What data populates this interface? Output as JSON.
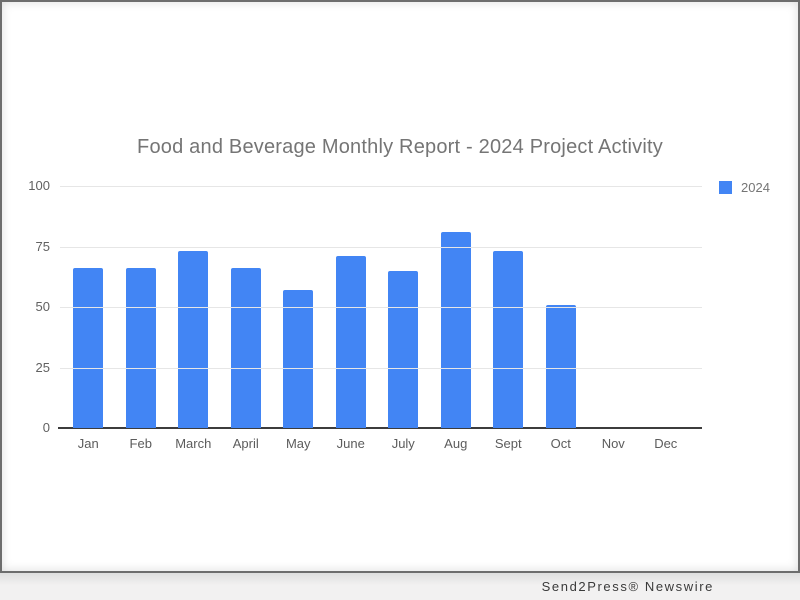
{
  "watermark": {
    "text": "Send2Press® Newswire"
  },
  "colors": {
    "bar": "#4285f4",
    "title_text": "#757575",
    "axis_label": "#616161",
    "gridline": "#e6e6e6",
    "baseline": "#3c3c3c",
    "frame_border": "#6d6d6d",
    "strip_background": "#f2f1f1"
  },
  "chart_data": {
    "type": "bar",
    "title": "Food and Beverage Monthly Report - 2024 Project Activity",
    "categories": [
      "Jan",
      "Feb",
      "March",
      "April",
      "May",
      "June",
      "July",
      "Aug",
      "Sept",
      "Oct",
      "Nov",
      "Dec"
    ],
    "series": [
      {
        "name": "2024",
        "values": [
          66,
          66,
          73,
          66,
          57,
          71,
          65,
          81,
          73,
          51,
          0,
          0
        ]
      }
    ],
    "xlabel": "",
    "ylabel": "",
    "yticks": [
      0,
      25,
      50,
      75,
      100
    ],
    "ylim": [
      0,
      100
    ],
    "grid": true,
    "legend_position": "top-right",
    "legend_entries": [
      "2024"
    ]
  }
}
